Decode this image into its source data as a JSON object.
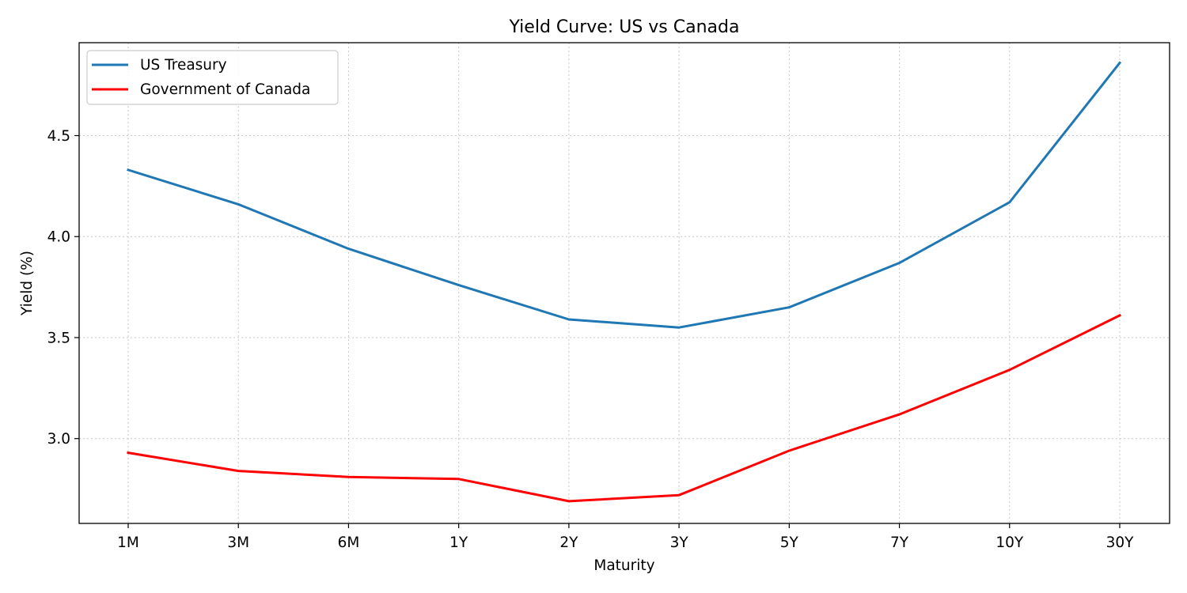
{
  "chart_data": {
    "type": "line",
    "title": "Yield Curve: US vs Canada",
    "xlabel": "Maturity",
    "ylabel": "Yield (%)",
    "categories": [
      "1M",
      "3M",
      "6M",
      "1Y",
      "2Y",
      "3Y",
      "5Y",
      "7Y",
      "10Y",
      "30Y"
    ],
    "yticks": [
      "3.0",
      "3.5",
      "4.0",
      "4.5"
    ],
    "ylim": [
      2.58,
      4.96
    ],
    "grid": true,
    "legend_position": "top-left",
    "series": [
      {
        "name": "US Treasury",
        "color": "#1f77b4",
        "values": [
          4.33,
          4.16,
          3.94,
          3.76,
          3.59,
          3.55,
          3.65,
          3.87,
          4.17,
          4.86
        ]
      },
      {
        "name": "Government of Canada",
        "color": "#ff0000",
        "values": [
          2.93,
          2.84,
          2.81,
          2.8,
          2.69,
          2.72,
          2.94,
          3.12,
          3.34,
          3.61
        ]
      }
    ]
  }
}
